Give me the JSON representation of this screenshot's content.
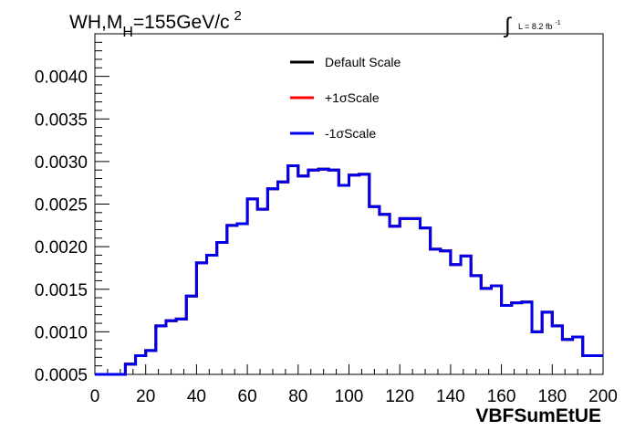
{
  "chart_data": {
    "type": "line",
    "title": {
      "prefix": "WH,M",
      "subscript": "H",
      "main": "=155GeV/c",
      "superscript": "2"
    },
    "luminosity": {
      "symbol": "∫",
      "label": "L = 8.2 fb",
      "superscript": "-1"
    },
    "xlabel": "VBFSumEtUE",
    "ylabel": "",
    "xlim": [
      0,
      200
    ],
    "ylim": [
      0.0005,
      0.0045
    ],
    "x_ticks": [
      0,
      20,
      40,
      60,
      80,
      100,
      120,
      140,
      160,
      180,
      200
    ],
    "y_ticks": [
      0.0005,
      0.001,
      0.0015,
      0.002,
      0.0025,
      0.003,
      0.0035,
      0.004
    ],
    "y_tick_labels": [
      "0.0005",
      "0.0010",
      "0.0015",
      "0.0020",
      "0.0025",
      "0.0030",
      "0.0035",
      "0.0040"
    ],
    "grid": false,
    "legend_position": "top-center",
    "bin_edges": [
      0,
      4,
      8,
      12,
      16,
      20,
      24,
      28,
      32,
      36,
      40,
      44,
      48,
      52,
      56,
      60,
      64,
      68,
      72,
      76,
      80,
      84,
      88,
      92,
      96,
      100,
      104,
      108,
      112,
      116,
      120,
      124,
      128,
      132,
      136,
      140,
      144,
      148,
      152,
      156,
      160,
      164,
      168,
      172,
      176,
      180,
      184,
      188,
      192,
      196,
      200
    ],
    "series": [
      {
        "name": "Default Scale",
        "color": "#000000",
        "values": [
          0.00049,
          0.00049,
          0.00049,
          0.00062,
          0.00072,
          0.00078,
          0.00107,
          0.00113,
          0.00115,
          0.00142,
          0.00181,
          0.0019,
          0.00205,
          0.00225,
          0.00227,
          0.00256,
          0.00244,
          0.00268,
          0.00276,
          0.00295,
          0.00283,
          0.0029,
          0.00291,
          0.0029,
          0.00272,
          0.00284,
          0.00285,
          0.00247,
          0.00238,
          0.00224,
          0.00233,
          0.00233,
          0.00222,
          0.00197,
          0.00195,
          0.00179,
          0.00189,
          0.00166,
          0.00151,
          0.00154,
          0.00131,
          0.00134,
          0.00135,
          0.001,
          0.00123,
          0.00107,
          0.00091,
          0.00094,
          0.00072,
          0.00072
        ]
      },
      {
        "name": "+1σScale",
        "color": "#ff0000",
        "values": [
          0.00049,
          0.00049,
          0.00049,
          0.00062,
          0.00072,
          0.00078,
          0.00107,
          0.00113,
          0.00115,
          0.00142,
          0.00181,
          0.0019,
          0.00205,
          0.00225,
          0.00227,
          0.00256,
          0.00244,
          0.00268,
          0.00276,
          0.00295,
          0.00283,
          0.0029,
          0.00291,
          0.0029,
          0.00272,
          0.00284,
          0.00285,
          0.00247,
          0.00238,
          0.00224,
          0.00233,
          0.00233,
          0.00222,
          0.00197,
          0.00195,
          0.00179,
          0.00189,
          0.00166,
          0.00151,
          0.00154,
          0.00131,
          0.00134,
          0.00135,
          0.001,
          0.00123,
          0.00107,
          0.00091,
          0.00094,
          0.00072,
          0.00072
        ]
      },
      {
        "name": "-1σScale",
        "color": "#0000ee",
        "values": [
          0.00049,
          0.00049,
          0.00049,
          0.00062,
          0.00072,
          0.00078,
          0.00107,
          0.00113,
          0.00115,
          0.00142,
          0.00181,
          0.0019,
          0.00205,
          0.00225,
          0.00227,
          0.00256,
          0.00244,
          0.00268,
          0.00276,
          0.00295,
          0.00283,
          0.0029,
          0.00291,
          0.0029,
          0.00272,
          0.00284,
          0.00285,
          0.00247,
          0.00238,
          0.00224,
          0.00233,
          0.00233,
          0.00222,
          0.00197,
          0.00195,
          0.00179,
          0.00189,
          0.00166,
          0.00151,
          0.00154,
          0.00131,
          0.00134,
          0.00135,
          0.001,
          0.00123,
          0.00107,
          0.00091,
          0.00094,
          0.00072,
          0.00072
        ]
      }
    ]
  }
}
